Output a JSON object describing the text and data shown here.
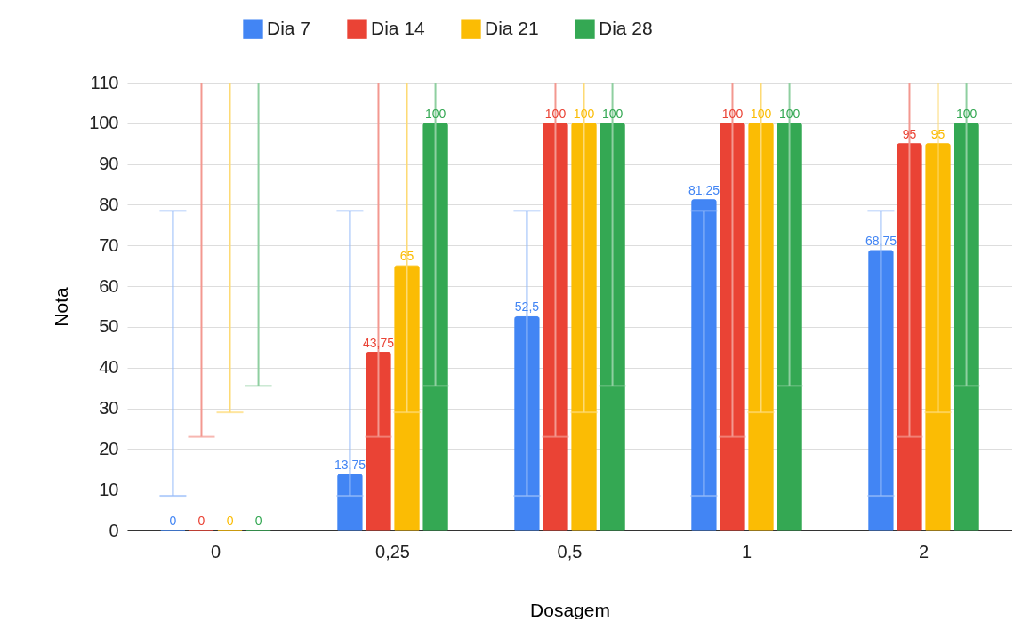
{
  "chart_data": {
    "type": "bar",
    "xlabel": "Dosagem",
    "ylabel": "Nota",
    "categories": [
      "0",
      "0,25",
      "0,5",
      "1",
      "2"
    ],
    "series": [
      {
        "name": "Dia 7",
        "color": "#4285f4",
        "values": [
          0,
          13.75,
          52.5,
          81.25,
          68.75
        ],
        "value_labels": [
          "0",
          "13,75",
          "52,5",
          "81,25",
          "68,75"
        ],
        "errors": [
          [
            8.5,
            78.5
          ],
          [
            8.5,
            78.5
          ],
          [
            8.5,
            78.5
          ],
          [
            8.5,
            78.5
          ],
          [
            8.5,
            78.5
          ]
        ]
      },
      {
        "name": "Dia 14",
        "color": "#ea4335",
        "values": [
          0,
          43.75,
          100,
          100,
          95
        ],
        "value_labels": [
          "0",
          "43,75",
          "100",
          "100",
          "95"
        ],
        "errors": [
          [
            23,
            110
          ],
          [
            23,
            110
          ],
          [
            23,
            110
          ],
          [
            23,
            110
          ],
          [
            23,
            110
          ]
        ]
      },
      {
        "name": "Dia 21",
        "color": "#fbbc04",
        "values": [
          0,
          65,
          100,
          100,
          95
        ],
        "value_labels": [
          "0",
          "65",
          "100",
          "100",
          "95"
        ],
        "errors": [
          [
            29,
            110
          ],
          [
            29,
            110
          ],
          [
            29,
            110
          ],
          [
            29,
            110
          ],
          [
            29,
            110
          ]
        ]
      },
      {
        "name": "Dia 28",
        "color": "#34a853",
        "values": [
          0,
          100,
          100,
          100,
          100
        ],
        "value_labels": [
          "0",
          "100",
          "100",
          "100",
          "100"
        ],
        "errors": [
          [
            35.5,
            110
          ],
          [
            35.5,
            110
          ],
          [
            35.5,
            110
          ],
          [
            35.5,
            110
          ],
          [
            35.5,
            110
          ]
        ]
      }
    ],
    "ylim": [
      0,
      110
    ],
    "yticks": [
      0,
      10,
      20,
      30,
      40,
      50,
      60,
      70,
      80,
      90,
      100,
      110
    ],
    "grid": "y",
    "legend": "top"
  }
}
